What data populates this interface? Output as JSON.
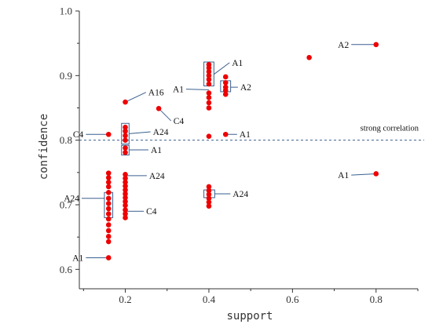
{
  "chart_data": {
    "type": "scatter",
    "xlabel": "support",
    "ylabel": "confidence",
    "xlim": [
      0.09,
      0.9
    ],
    "ylim": [
      0.57,
      1.0
    ],
    "xticks": [
      0.2,
      0.4,
      0.6,
      0.8
    ],
    "xtick_labels": [
      "0.2",
      "0.4",
      "0.6",
      "0.8"
    ],
    "yticks": [
      0.6,
      0.7,
      0.8,
      0.9,
      1.0
    ],
    "ytick_labels": [
      "0.6",
      "0.7",
      "0.8",
      "0.9",
      "1.0"
    ],
    "grid": false,
    "marker_color": "#ee0000",
    "line_color": "#3a5f8f",
    "reference_line": {
      "y": 0.8,
      "label": "strong correlation"
    },
    "points": [
      {
        "x": 0.16,
        "y": 0.809
      },
      {
        "x": 0.16,
        "y": 0.749
      },
      {
        "x": 0.16,
        "y": 0.742
      },
      {
        "x": 0.16,
        "y": 0.735
      },
      {
        "x": 0.16,
        "y": 0.728
      },
      {
        "x": 0.16,
        "y": 0.719
      },
      {
        "x": 0.16,
        "y": 0.71
      },
      {
        "x": 0.16,
        "y": 0.702
      },
      {
        "x": 0.16,
        "y": 0.694
      },
      {
        "x": 0.16,
        "y": 0.686
      },
      {
        "x": 0.16,
        "y": 0.678
      },
      {
        "x": 0.16,
        "y": 0.669
      },
      {
        "x": 0.16,
        "y": 0.66
      },
      {
        "x": 0.16,
        "y": 0.651
      },
      {
        "x": 0.16,
        "y": 0.643
      },
      {
        "x": 0.16,
        "y": 0.618
      },
      {
        "x": 0.2,
        "y": 0.859
      },
      {
        "x": 0.2,
        "y": 0.82
      },
      {
        "x": 0.2,
        "y": 0.814
      },
      {
        "x": 0.2,
        "y": 0.807
      },
      {
        "x": 0.2,
        "y": 0.8
      },
      {
        "x": 0.2,
        "y": 0.788
      },
      {
        "x": 0.2,
        "y": 0.781
      },
      {
        "x": 0.2,
        "y": 0.747
      },
      {
        "x": 0.2,
        "y": 0.741
      },
      {
        "x": 0.2,
        "y": 0.735
      },
      {
        "x": 0.2,
        "y": 0.729
      },
      {
        "x": 0.2,
        "y": 0.723
      },
      {
        "x": 0.2,
        "y": 0.717
      },
      {
        "x": 0.2,
        "y": 0.711
      },
      {
        "x": 0.2,
        "y": 0.705
      },
      {
        "x": 0.2,
        "y": 0.699
      },
      {
        "x": 0.2,
        "y": 0.692
      },
      {
        "x": 0.2,
        "y": 0.686
      },
      {
        "x": 0.2,
        "y": 0.68
      },
      {
        "x": 0.28,
        "y": 0.849
      },
      {
        "x": 0.4,
        "y": 0.917
      },
      {
        "x": 0.4,
        "y": 0.912
      },
      {
        "x": 0.4,
        "y": 0.906
      },
      {
        "x": 0.4,
        "y": 0.9
      },
      {
        "x": 0.4,
        "y": 0.894
      },
      {
        "x": 0.4,
        "y": 0.887
      },
      {
        "x": 0.4,
        "y": 0.873
      },
      {
        "x": 0.4,
        "y": 0.866
      },
      {
        "x": 0.4,
        "y": 0.858
      },
      {
        "x": 0.4,
        "y": 0.85
      },
      {
        "x": 0.4,
        "y": 0.806
      },
      {
        "x": 0.4,
        "y": 0.728
      },
      {
        "x": 0.4,
        "y": 0.722
      },
      {
        "x": 0.4,
        "y": 0.716
      },
      {
        "x": 0.4,
        "y": 0.71
      },
      {
        "x": 0.4,
        "y": 0.704
      },
      {
        "x": 0.4,
        "y": 0.698
      },
      {
        "x": 0.44,
        "y": 0.898
      },
      {
        "x": 0.44,
        "y": 0.889
      },
      {
        "x": 0.44,
        "y": 0.882
      },
      {
        "x": 0.44,
        "y": 0.877
      },
      {
        "x": 0.44,
        "y": 0.871
      },
      {
        "x": 0.44,
        "y": 0.809
      },
      {
        "x": 0.64,
        "y": 0.928
      },
      {
        "x": 0.8,
        "y": 0.948
      },
      {
        "x": 0.8,
        "y": 0.748
      }
    ],
    "boxes": [
      {
        "x0": 0.191,
        "x1": 0.209,
        "y0": 0.794,
        "y1": 0.826
      },
      {
        "x0": 0.191,
        "x1": 0.209,
        "y0": 0.777,
        "y1": 0.792
      },
      {
        "x0": 0.15,
        "x1": 0.17,
        "y0": 0.68,
        "y1": 0.719
      },
      {
        "x0": 0.388,
        "x1": 0.412,
        "y0": 0.884,
        "y1": 0.921
      },
      {
        "x0": 0.428,
        "x1": 0.452,
        "y0": 0.875,
        "y1": 0.892
      },
      {
        "x0": 0.388,
        "x1": 0.414,
        "y0": 0.711,
        "y1": 0.723
      }
    ],
    "annotations": [
      {
        "text": "A2",
        "point": [
          0.8,
          0.948
        ],
        "label": [
          0.735,
          0.948
        ],
        "anchor": "end"
      },
      {
        "text": "A1",
        "point": [
          0.64,
          0.928
        ],
        "label": [
          0.455,
          0.92
        ],
        "anchor": "start",
        "from": [
          0.412,
          0.902
        ]
      },
      {
        "text": "A2",
        "point": [
          0.452,
          0.882
        ],
        "label": [
          0.475,
          0.882
        ],
        "anchor": "start",
        "from": [
          0.452,
          0.882
        ]
      },
      {
        "text": "A1",
        "point": [
          0.4,
          0.878
        ],
        "label": [
          0.34,
          0.879
        ],
        "anchor": "end"
      },
      {
        "text": "A16",
        "point": [
          0.2,
          0.859
        ],
        "label": [
          0.255,
          0.874
        ],
        "anchor": "start"
      },
      {
        "text": "C4",
        "point": [
          0.28,
          0.849
        ],
        "label": [
          0.315,
          0.83
        ],
        "anchor": "start"
      },
      {
        "text": "A24",
        "point": [
          0.209,
          0.81
        ],
        "label": [
          0.266,
          0.813
        ],
        "anchor": "start",
        "from": [
          0.209,
          0.81
        ]
      },
      {
        "text": "C4",
        "point": [
          0.16,
          0.809
        ],
        "label": [
          0.1,
          0.809
        ],
        "anchor": "end"
      },
      {
        "text": "A1",
        "point": [
          0.44,
          0.809
        ],
        "label": [
          0.473,
          0.809
        ],
        "anchor": "start"
      },
      {
        "text": "A1",
        "point": [
          0.209,
          0.785
        ],
        "label": [
          0.261,
          0.785
        ],
        "anchor": "start",
        "from": [
          0.209,
          0.785
        ]
      },
      {
        "text": "A1",
        "point": [
          0.8,
          0.748
        ],
        "label": [
          0.735,
          0.746
        ],
        "anchor": "end"
      },
      {
        "text": "A24",
        "point": [
          0.2,
          0.745
        ],
        "label": [
          0.257,
          0.745
        ],
        "anchor": "start"
      },
      {
        "text": "A24",
        "point": [
          0.414,
          0.717
        ],
        "label": [
          0.457,
          0.717
        ],
        "anchor": "start",
        "from": [
          0.414,
          0.717
        ]
      },
      {
        "text": "A24",
        "point": [
          0.15,
          0.71
        ],
        "label": [
          0.09,
          0.71
        ],
        "anchor": "end",
        "from": [
          0.15,
          0.71
        ]
      },
      {
        "text": "C4",
        "point": [
          0.2,
          0.69
        ],
        "label": [
          0.25,
          0.69
        ],
        "anchor": "start"
      },
      {
        "text": "A1",
        "point": [
          0.16,
          0.618
        ],
        "label": [
          0.1,
          0.618
        ],
        "anchor": "end"
      }
    ]
  }
}
